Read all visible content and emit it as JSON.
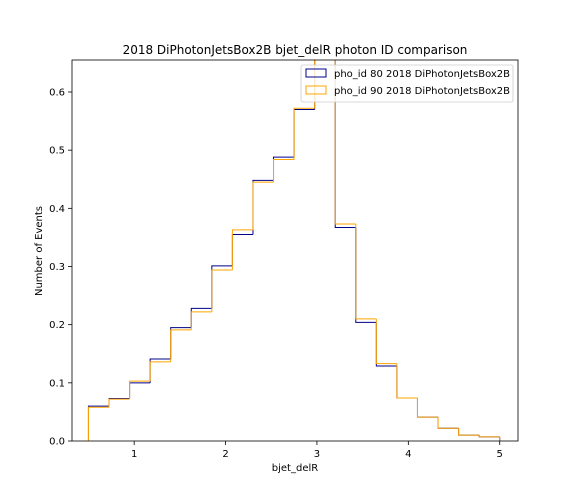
{
  "chart_data": {
    "type": "histogram",
    "title": "2018 DiPhotonJetsBox2B bjet_delR photon ID comparison",
    "xlabel": "bjet_delR",
    "ylabel": "Number of Events",
    "xlim": [
      0.32,
      5.2
    ],
    "ylim": [
      0.0,
      0.655
    ],
    "xticks": [
      1,
      2,
      3,
      4,
      5
    ],
    "yticks": [
      0.0,
      0.1,
      0.2,
      0.3,
      0.4,
      0.5,
      0.6
    ],
    "bin_edges": [
      0.5,
      0.725,
      0.95,
      1.175,
      1.4,
      1.625,
      1.85,
      2.075,
      2.3,
      2.525,
      2.75,
      2.975,
      3.2,
      3.425,
      3.65,
      3.875,
      4.1,
      4.325,
      4.55,
      4.775,
      5.0
    ],
    "legend_position": "upper right",
    "grid": false,
    "series": [
      {
        "name": "pho_id 80 2018 DiPhotonJetsBox2B",
        "color": "#00008b",
        "values": [
          0.06,
          0.073,
          0.1,
          0.141,
          0.195,
          0.228,
          0.301,
          0.355,
          0.448,
          0.488,
          0.57,
          0.665,
          0.367,
          0.204,
          0.129,
          0.074,
          0.041,
          0.022,
          0.01,
          0.007
        ]
      },
      {
        "name": "pho_id 90 2018 DiPhotonJetsBox2B",
        "color": "#ffa500",
        "values": [
          0.058,
          0.072,
          0.103,
          0.136,
          0.191,
          0.222,
          0.294,
          0.363,
          0.445,
          0.484,
          0.572,
          0.665,
          0.373,
          0.21,
          0.133,
          0.074,
          0.041,
          0.022,
          0.01,
          0.007
        ]
      }
    ]
  }
}
